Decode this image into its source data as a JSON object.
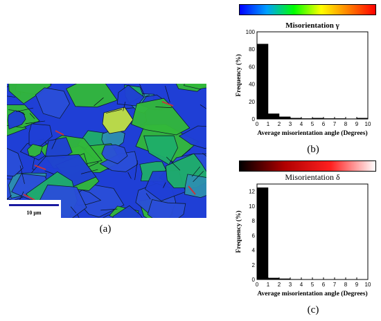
{
  "figure": {
    "panel_a": {
      "caption": "(a)",
      "scale_bar_label": "10 μm",
      "map_colors": [
        "#1f3fd6",
        "#2a4ed9",
        "#33b93a",
        "#1fae6a",
        "#2d8fb0",
        "#b8d84a",
        "#c8333a"
      ]
    },
    "panel_b": {
      "caption": "(b)",
      "colorbar_colors": [
        "#0000ff",
        "#00a0ff",
        "#00ff00",
        "#ffff00",
        "#ff8000",
        "#ff0000"
      ]
    },
    "panel_c": {
      "caption": "(c)",
      "colorbar_colors": [
        "#000000",
        "#b00000",
        "#ff2020",
        "#ffffff"
      ]
    }
  },
  "chart_data": [
    {
      "id": "b",
      "type": "bar",
      "title": "Misorientation γ",
      "xlabel": "Average misorientation angle (Degrees)",
      "ylabel": "Frequency (%)",
      "xlim": [
        0,
        10
      ],
      "ylim": [
        0,
        100
      ],
      "xticks": [
        0,
        1,
        2,
        3,
        4,
        5,
        6,
        7,
        8,
        9,
        10
      ],
      "yticks": [
        0,
        20,
        40,
        60,
        80,
        100
      ],
      "bin_width": 1,
      "bins": [
        {
          "x": 0.5,
          "value": 86
        },
        {
          "x": 1.5,
          "value": 6
        },
        {
          "x": 2.5,
          "value": 2.5
        },
        {
          "x": 3.5,
          "value": 1
        },
        {
          "x": 4.5,
          "value": 0.5
        },
        {
          "x": 5.5,
          "value": 1
        },
        {
          "x": 6.5,
          "value": 0.5
        },
        {
          "x": 7.5,
          "value": 0.5
        },
        {
          "x": 8.5,
          "value": 0.3
        },
        {
          "x": 9.5,
          "value": 1
        }
      ]
    },
    {
      "id": "c",
      "type": "bar",
      "title": "Misorientation δ",
      "xlabel": "Average misorientation angle (Degrees)",
      "ylabel": "Frequency (%)",
      "xlim": [
        0,
        10
      ],
      "ylim": [
        0,
        13
      ],
      "xticks": [
        0,
        1,
        2,
        3,
        4,
        5,
        6,
        7,
        8,
        9,
        10
      ],
      "yticks": [
        0,
        2,
        4,
        6,
        8,
        10,
        12
      ],
      "bin_width": 1,
      "bins": [
        {
          "x": 0.5,
          "value": 12.5
        },
        {
          "x": 1.5,
          "value": 0.2
        },
        {
          "x": 2.5,
          "value": 0.1
        },
        {
          "x": 3.5,
          "value": 0.03
        },
        {
          "x": 4.5,
          "value": 0.02
        },
        {
          "x": 5.5,
          "value": 0.02
        },
        {
          "x": 6.5,
          "value": 0.01
        },
        {
          "x": 7.5,
          "value": 0.01
        },
        {
          "x": 8.5,
          "value": 0.01
        },
        {
          "x": 9.5,
          "value": 0.01
        }
      ]
    }
  ]
}
